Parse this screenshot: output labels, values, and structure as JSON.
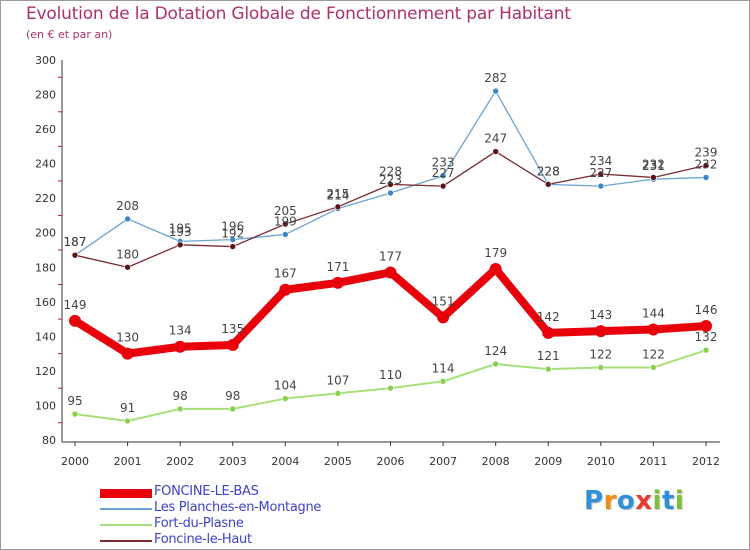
{
  "title": "Evolution de la Dotation Globale de Fonctionnement par Habitant",
  "subtitle": "(en € et par an)",
  "logo": {
    "text": "Proxiti",
    "letters": [
      "P",
      "r",
      "o",
      "x",
      "i",
      "t",
      "i"
    ],
    "colors": [
      "#2f8fd8",
      "#f28c18",
      "#2f8fd8",
      "#e63b2e",
      "#7cbf3a",
      "#2f8fd8",
      "#7cbf3a"
    ]
  },
  "chart_data": {
    "type": "line",
    "title": "Evolution de la Dotation Globale de Fonctionnement par Habitant",
    "subtitle": "(en € et par an)",
    "x": [
      "2000",
      "2001",
      "2002",
      "2003",
      "2004",
      "2005",
      "2006",
      "2007",
      "2008",
      "2009",
      "2010",
      "2011",
      "2012"
    ],
    "ylim": [
      80,
      300
    ],
    "yticks": [
      80,
      100,
      120,
      140,
      160,
      180,
      200,
      220,
      240,
      260,
      280,
      300
    ],
    "grid": false,
    "legend_position": "bottom-left",
    "series": [
      {
        "name": "FONCINE-LE-BAS",
        "color": "#e8000b",
        "width": 8,
        "point_radius": 6,
        "values": [
          149,
          130,
          134,
          135,
          167,
          171,
          177,
          151,
          179,
          142,
          143,
          144,
          146
        ]
      },
      {
        "name": "Les Planches-en-Montagne",
        "color": "#6aa4d4",
        "width": 1.3,
        "point_color": "#3a86c8",
        "point_radius": 3,
        "values": [
          187,
          208,
          195,
          196,
          199,
          214,
          223,
          233,
          282,
          228,
          227,
          231,
          232
        ],
        "labels": [
          "187",
          "208",
          "195",
          "196",
          "199",
          "214",
          "223",
          "233",
          "282",
          "228",
          "227",
          "231",
          "232"
        ]
      },
      {
        "name": "Fort-du-Plasne",
        "color": "#a6e07a",
        "width": 2,
        "point_color": "#8ad04e",
        "point_radius": 3,
        "values": [
          95,
          91,
          98,
          98,
          104,
          107,
          110,
          114,
          124,
          121,
          122,
          122,
          132
        ]
      },
      {
        "name": "Foncine-le-Haut",
        "color": "#7a2a30",
        "width": 1.3,
        "point_color": "#5a1418",
        "point_radius": 3,
        "values": [
          187,
          180,
          193,
          192,
          205,
          215,
          228,
          227,
          247,
          228,
          234,
          232,
          239
        ],
        "labels": [
          "187",
          "180",
          "193",
          "192",
          "205",
          "215",
          "228",
          "227",
          "247",
          "228",
          "234",
          "232",
          "239"
        ]
      }
    ]
  }
}
